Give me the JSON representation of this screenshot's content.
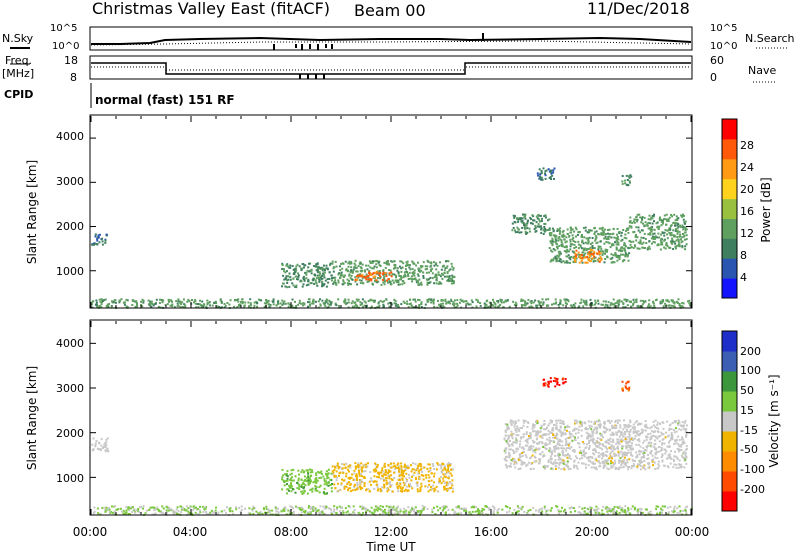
{
  "header": {
    "title": "Christmas Valley East (fitACF)",
    "beam": "Beam 00",
    "date": "11/Dec/2018"
  },
  "top_panels": {
    "nsky_label": "N.Sky",
    "nsearch_label": "N.Search",
    "noise_ticks": [
      "10^5",
      "10^0"
    ],
    "freq_label": "Freq.",
    "freq_unit": "[MHz]",
    "freq_ticks": [
      "18",
      "8"
    ],
    "nave_label": "Nave",
    "nave_ticks": [
      "60",
      "0"
    ],
    "cpid_label": "CPID",
    "cpid_text": "normal (fast) 151 RF"
  },
  "power_panel": {
    "ylabel": "Slant Range [km]",
    "yticks": [
      "4000",
      "3000",
      "2000",
      "1000"
    ],
    "colorbar_label": "Power [dB]",
    "colorbar_ticks": [
      "28",
      "24",
      "20",
      "16",
      "12",
      "8",
      "4"
    ]
  },
  "velocity_panel": {
    "ylabel": "Slant Range [km]",
    "yticks": [
      "4000",
      "3000",
      "2000",
      "1000"
    ],
    "colorbar_label": "Velocity [m s⁻¹]",
    "colorbar_ticks": [
      "200",
      "100",
      "50",
      "15",
      "-15",
      "-50",
      "-100",
      "-200"
    ]
  },
  "xaxis": {
    "label": "Time UT",
    "ticks": [
      "00:00",
      "04:00",
      "08:00",
      "12:00",
      "16:00",
      "20:00",
      "00:00"
    ]
  },
  "colors": {
    "power_scale": [
      "#1414ff",
      "#2a55b0",
      "#3f7f5f",
      "#5fa060",
      "#9ac040",
      "#ffd21e",
      "#ff9a14",
      "#ff5a0a",
      "#ff0000"
    ],
    "velocity_scale": [
      "#ff0000",
      "#ff4a00",
      "#ff8c00",
      "#f0b400",
      "#c8c8c8",
      "#7ac83c",
      "#3c963c",
      "#3c5fb4",
      "#1e2ec8"
    ]
  },
  "chart_data": [
    {
      "type": "heatmap",
      "title": "Power",
      "xlabel": "Time UT",
      "ylabel": "Slant Range [km]",
      "xlim": [
        0,
        24
      ],
      "ylim": [
        180,
        4500
      ],
      "colorbar": {
        "label": "Power [dB]",
        "range": [
          0,
          32
        ]
      },
      "regions": [
        {
          "t": [
            0.0,
            24.0
          ],
          "range": [
            180,
            380
          ],
          "value": 12
        },
        {
          "t": [
            0.0,
            0.7
          ],
          "range": [
            1600,
            1850
          ],
          "value": 8
        },
        {
          "t": [
            7.6,
            9.6
          ],
          "range": [
            650,
            1200
          ],
          "value": 10
        },
        {
          "t": [
            9.6,
            14.5
          ],
          "range": [
            700,
            1250
          ],
          "value": 12
        },
        {
          "t": [
            10.5,
            12.0
          ],
          "range": [
            800,
            1000
          ],
          "value": 26
        },
        {
          "t": [
            16.8,
            18.3
          ],
          "range": [
            1850,
            2300
          ],
          "value": 10
        },
        {
          "t": [
            18.3,
            21.5
          ],
          "range": [
            1200,
            2000
          ],
          "value": 12
        },
        {
          "t": [
            19.3,
            20.4
          ],
          "range": [
            1200,
            1500
          ],
          "value": 24
        },
        {
          "t": [
            21.5,
            23.8
          ],
          "range": [
            1500,
            2300
          ],
          "value": 12
        },
        {
          "t": [
            17.8,
            18.5
          ],
          "range": [
            3050,
            3350
          ],
          "value": 8
        },
        {
          "t": [
            21.2,
            21.6
          ],
          "range": [
            2950,
            3200
          ],
          "value": 10
        }
      ]
    },
    {
      "type": "heatmap",
      "title": "Velocity",
      "xlabel": "Time UT",
      "ylabel": "Slant Range [km]",
      "xlim": [
        0,
        24
      ],
      "ylim": [
        180,
        4500
      ],
      "colorbar": {
        "label": "Velocity [m s⁻¹]",
        "range": [
          -240,
          240
        ]
      },
      "regions": [
        {
          "t": [
            0.0,
            24.0
          ],
          "range": [
            180,
            380
          ],
          "value": 30
        },
        {
          "t": [
            0.0,
            0.7
          ],
          "range": [
            1600,
            1900
          ],
          "value": 0
        },
        {
          "t": [
            7.6,
            9.6
          ],
          "range": [
            650,
            1200
          ],
          "value": 60
        },
        {
          "t": [
            9.6,
            14.5
          ],
          "range": [
            700,
            1350
          ],
          "value": -40
        },
        {
          "t": [
            16.5,
            23.8
          ],
          "range": [
            1200,
            2300
          ],
          "value": 0
        },
        {
          "t": [
            18.0,
            19.0
          ],
          "range": [
            3050,
            3250
          ],
          "value": -200
        },
        {
          "t": [
            21.2,
            21.6
          ],
          "range": [
            2950,
            3200
          ],
          "value": -150
        }
      ]
    }
  ]
}
